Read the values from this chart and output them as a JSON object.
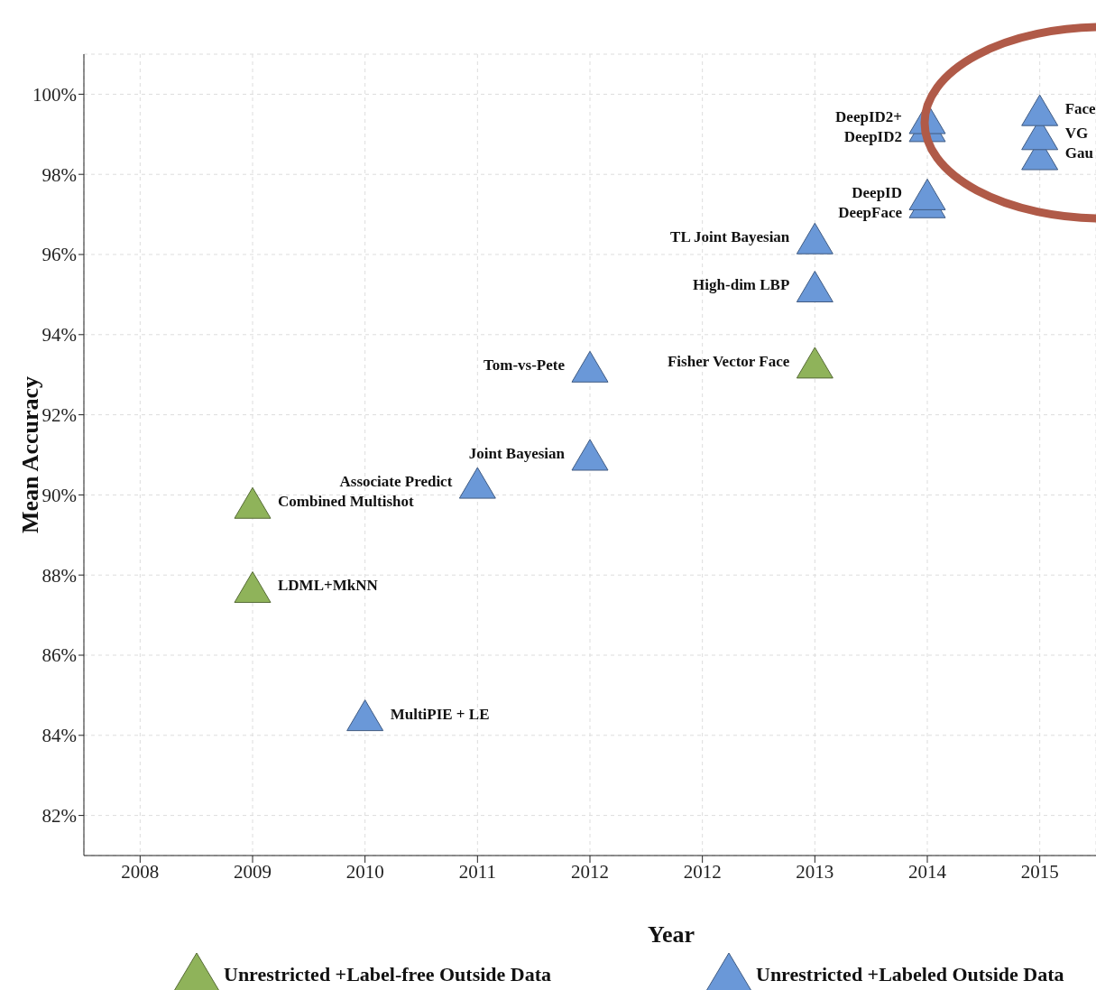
{
  "chart_data": {
    "type": "scatter",
    "xlabel": "Year",
    "ylabel": "Mean Accuracy",
    "categories": [
      "2008",
      "2009",
      "2010",
      "2011",
      "2012",
      "2012",
      "2013",
      "2014",
      "2015"
    ],
    "ylim": [
      81,
      101
    ],
    "yticks": [
      {
        "value": 82,
        "label": "82%"
      },
      {
        "value": 84,
        "label": "84%"
      },
      {
        "value": 86,
        "label": "86%"
      },
      {
        "value": 88,
        "label": "88%"
      },
      {
        "value": 90,
        "label": "90%"
      },
      {
        "value": 92,
        "label": "92%"
      },
      {
        "value": 94,
        "label": "94%"
      },
      {
        "value": 96,
        "label": "96%"
      },
      {
        "value": 98,
        "label": "98%"
      },
      {
        "value": 100,
        "label": "100%"
      }
    ],
    "grid": true,
    "legend": "bottom",
    "marker": "triangle",
    "series": [
      {
        "name": "Unrestricted +Label-free Outside Data",
        "color": "#8fb35a",
        "values": [
          null,
          89.8,
          null,
          null,
          null,
          null,
          93.3,
          null,
          null
        ]
      },
      {
        "color": "#8fb35a",
        "values": [
          null,
          87.7,
          null,
          null,
          null,
          null,
          null,
          null,
          null
        ]
      },
      {
        "name": "Unrestricted +Labeled Outside Data",
        "color": "#6a98d8",
        "values": [
          null,
          null,
          84.5,
          90.3,
          91.0,
          null,
          95.2,
          97.3,
          98.5
        ]
      },
      {
        "color": "#6a98d8",
        "values": [
          null,
          null,
          null,
          null,
          93.2,
          null,
          96.4,
          97.5,
          99.0
        ]
      },
      {
        "color": "#6a98d8",
        "values": [
          null,
          null,
          null,
          null,
          null,
          null,
          null,
          99.2,
          99.6
        ]
      },
      {
        "color": "#6a98d8",
        "values": [
          null,
          null,
          null,
          null,
          null,
          null,
          null,
          99.4,
          null
        ]
      }
    ],
    "annotations": [
      {
        "text": "Combined Multishot",
        "x": "2009",
        "y": 89.8
      },
      {
        "text": "LDML+MkNN",
        "x": "2009",
        "y": 87.7
      },
      {
        "text": "MultiPIE + LE",
        "x": "2010",
        "y": 84.5
      },
      {
        "text": "Associate Predict",
        "x": "2011",
        "y": 90.3
      },
      {
        "text": "Joint Bayesian",
        "x": "2012",
        "y": 91.0
      },
      {
        "text": "Tom-vs-Pete",
        "x": "2012",
        "y": 93.2
      },
      {
        "text": "Fisher Vector Face",
        "x": "2013",
        "y": 93.3
      },
      {
        "text": "High-dim LBP",
        "x": "2013",
        "y": 95.2
      },
      {
        "text": "TL Joint Bayesian",
        "x": "2013",
        "y": 96.4
      },
      {
        "text": "DeepFace",
        "x": "2014",
        "y": 97.3
      },
      {
        "text": "DeepID",
        "x": "2014",
        "y": 97.5
      },
      {
        "text": "DeepID2",
        "x": "2014",
        "y": 99.2
      },
      {
        "text": "DeepID2+",
        "x": "2014",
        "y": 99.4
      },
      {
        "text": "Face",
        "x": "2015",
        "y": 99.6
      },
      {
        "text": "VG",
        "x": "2015",
        "y": 99.0
      },
      {
        "text": "Gau",
        "x": "2015",
        "y": 98.5
      }
    ]
  }
}
